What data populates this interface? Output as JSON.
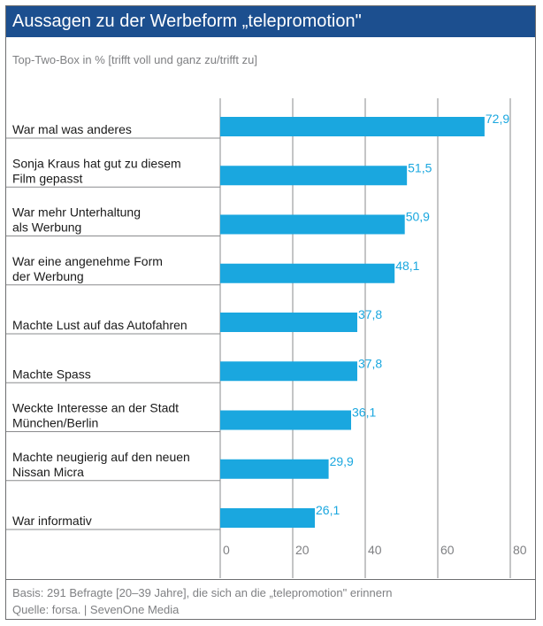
{
  "title": "Aussagen zu der Werbeform „telepromotion\"",
  "subtitle": "Top-Two-Box in % [trifft voll und ganz zu/trifft zu]",
  "footer": {
    "basis": "Basis: 291 Befragte [20–39 Jahre], die sich an die „telepromotion\" erinnern",
    "source": "Quelle: forsa. | SevenOne Media"
  },
  "colors": {
    "header_bg": "#1c4f8f",
    "bar": "#1aa7df",
    "value_text": "#1aa7df",
    "grid": "#8a8b8d"
  },
  "chart_data": {
    "type": "bar",
    "orientation": "horizontal",
    "categories": [
      [
        "War mal was anderes"
      ],
      [
        "Sonja Kraus hat gut zu diesem",
        "Film gepasst"
      ],
      [
        "War mehr Unterhaltung",
        "als Werbung"
      ],
      [
        "War eine angenehme Form",
        "der Werbung"
      ],
      [
        "Machte Lust auf das Autofahren"
      ],
      [
        "Machte Spass"
      ],
      [
        "Weckte Interesse an der Stadt",
        "München/Berlin"
      ],
      [
        "Machte neugierig auf den neuen",
        "Nissan Micra"
      ],
      [
        "War informativ"
      ]
    ],
    "values": [
      72.9,
      51.5,
      50.9,
      48.1,
      37.8,
      37.8,
      36.1,
      29.9,
      26.1
    ],
    "value_labels": [
      "72,9",
      "51,5",
      "50,9",
      "48,1",
      "37,8",
      "37,8",
      "36,1",
      "29,9",
      "26,1"
    ],
    "xlim": [
      0,
      80
    ],
    "xticks": [
      0,
      20,
      40,
      60,
      80
    ],
    "xtick_labels": [
      "0",
      "20",
      "40",
      "60",
      "80"
    ],
    "grid": true
  }
}
